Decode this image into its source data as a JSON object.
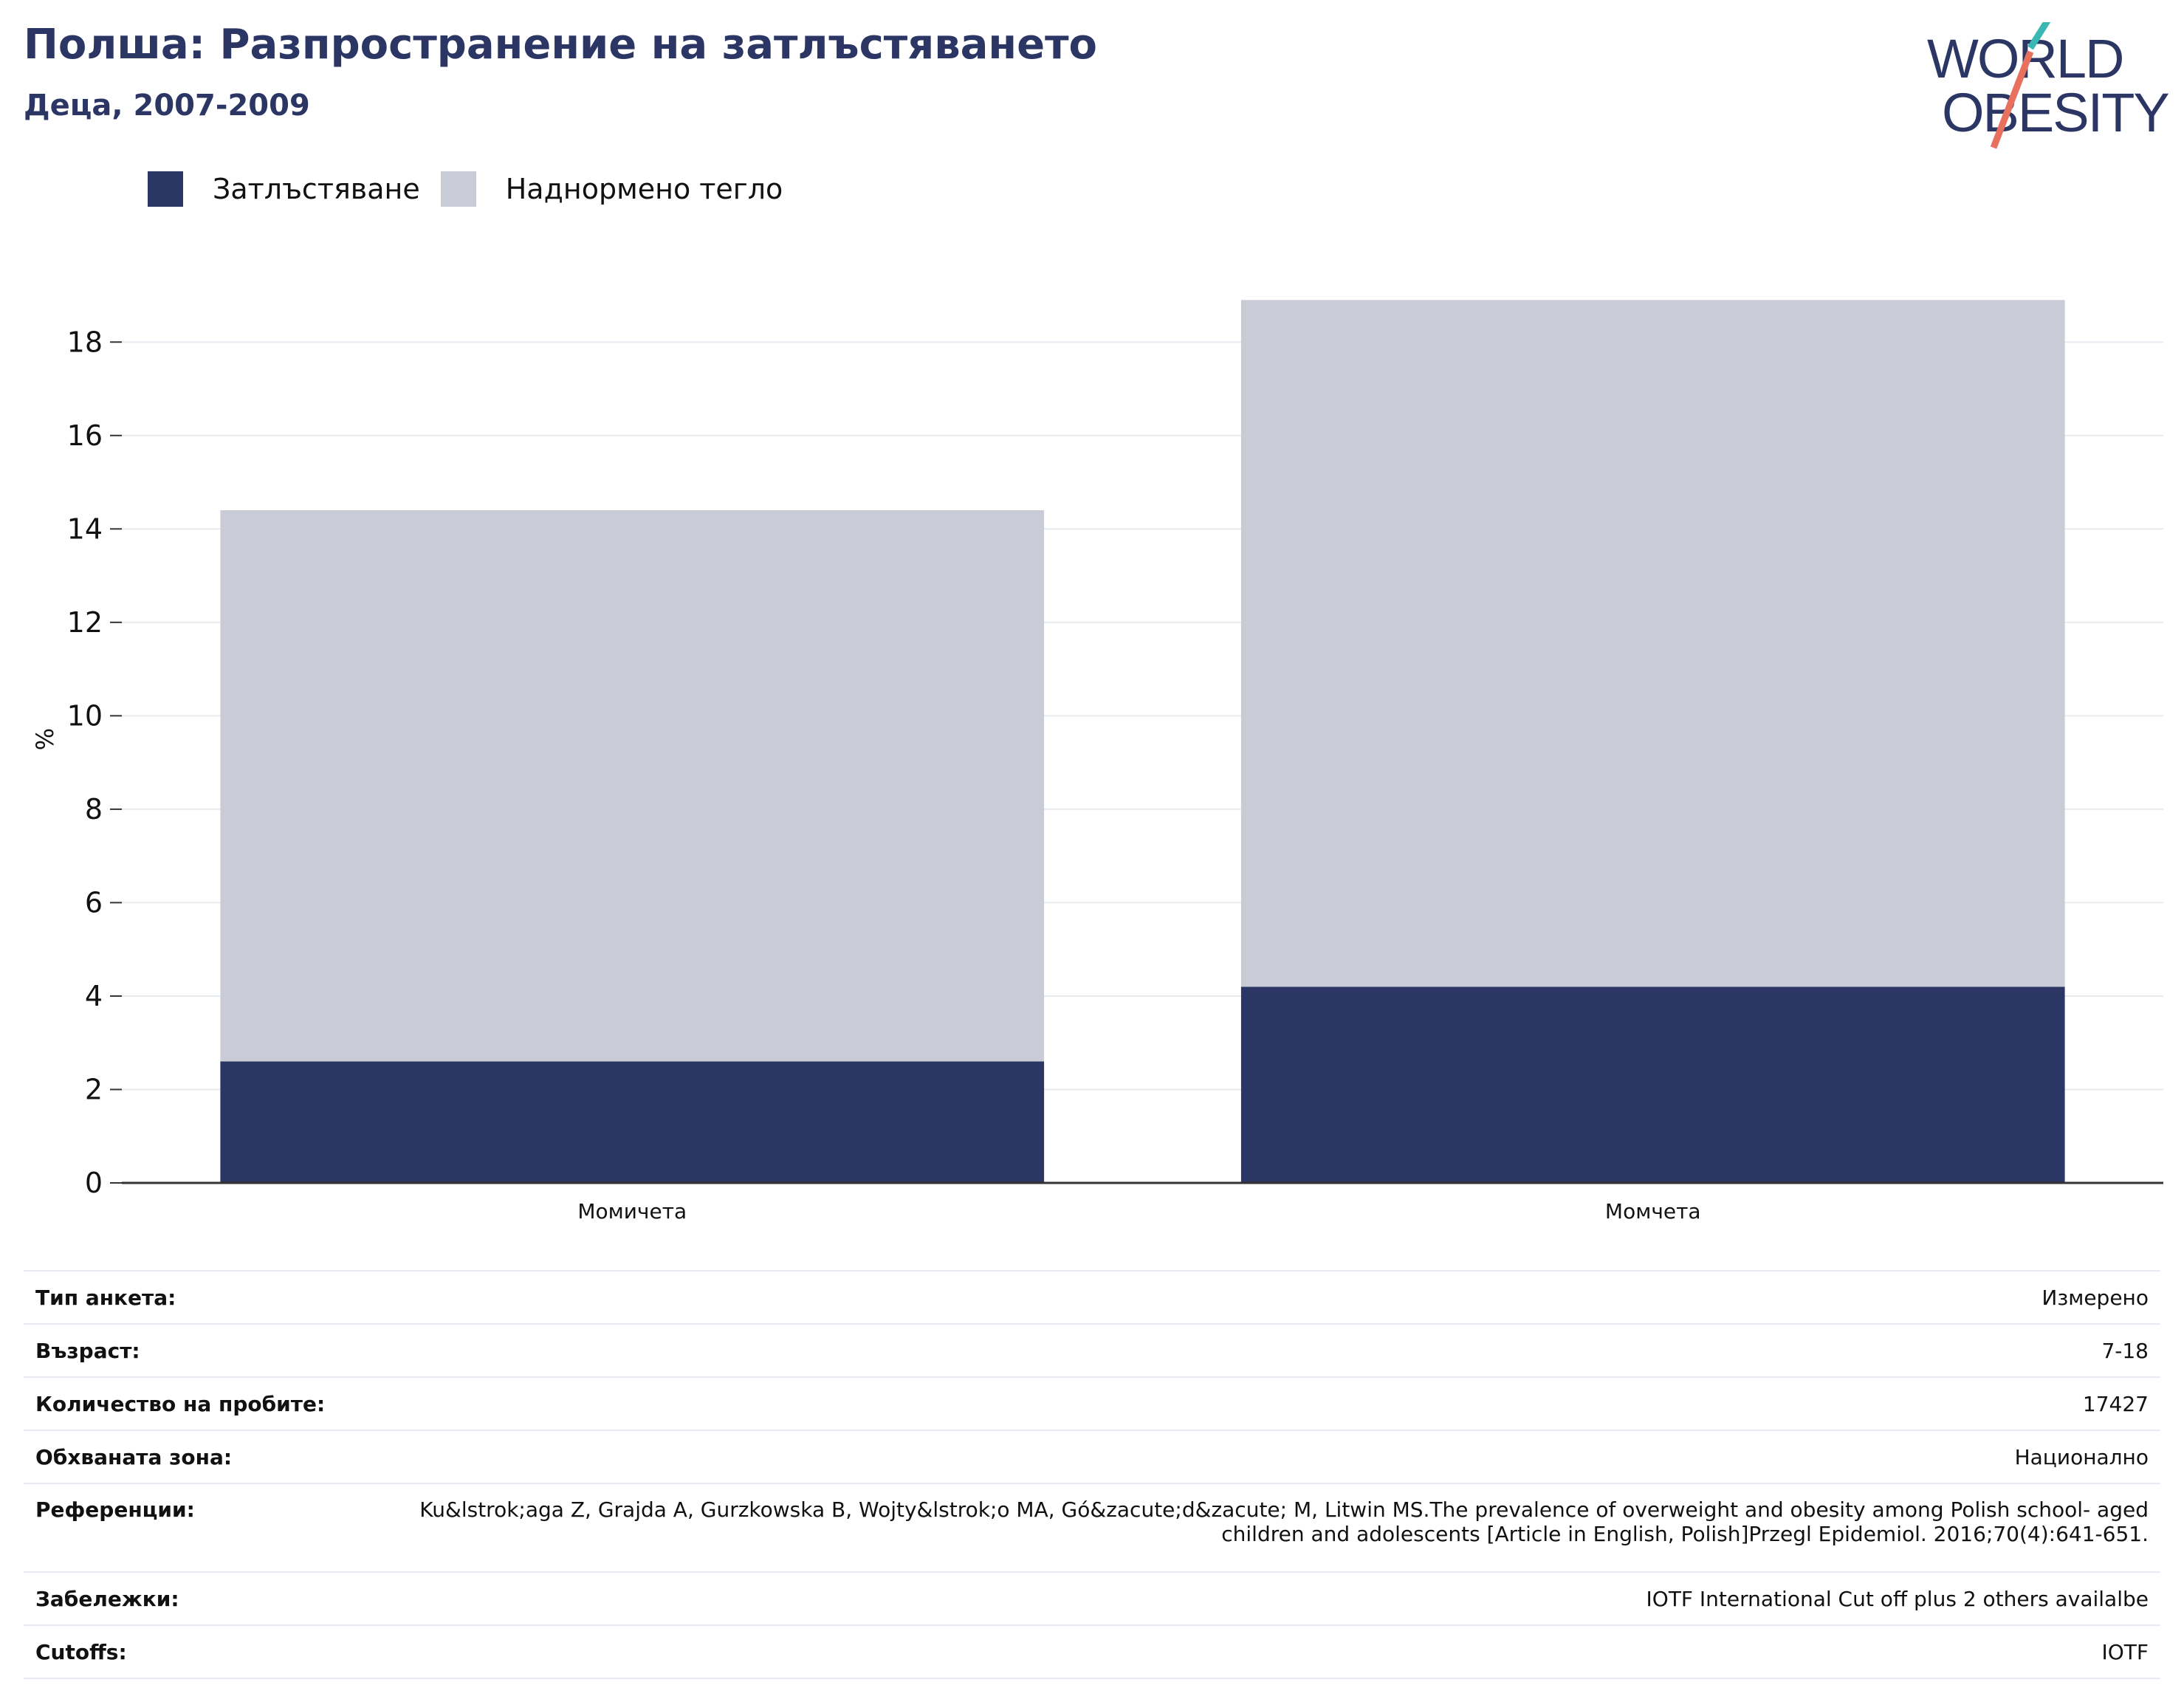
{
  "header": {
    "title": "Полша: Разпространение на затлъстяването",
    "subtitle": "Деца, 2007-2009"
  },
  "logo": {
    "line1": "WORLD",
    "line2": "OBESITY",
    "colors": {
      "text": "#2b3664",
      "slash_teal": "#3bb7b4",
      "slash_red": "#e8705f"
    }
  },
  "colors": {
    "obesity": "#2b3664",
    "overweight": "#c9cbd7",
    "grid": "#e9eaef",
    "axis": "#333333"
  },
  "chart_data": {
    "type": "bar",
    "stacked": true,
    "categories": [
      "Момичета",
      "Момчета"
    ],
    "series": [
      {
        "name": "Затлъстяване",
        "values": [
          2.6,
          4.2
        ]
      },
      {
        "name": "Наднормено тегло",
        "values": [
          11.8,
          14.7
        ]
      }
    ],
    "ylabel": "%",
    "ylim": [
      0,
      19
    ],
    "yticks": [
      0,
      2,
      4,
      6,
      8,
      10,
      12,
      14,
      16,
      18
    ],
    "grid": true,
    "legend": "top-left"
  },
  "info": [
    {
      "key": "Тип анкета:",
      "value": "Измерено"
    },
    {
      "key": "Възраст:",
      "value": "7-18"
    },
    {
      "key": "Количество на пробите:",
      "value": "17427"
    },
    {
      "key": "Обхваната зона:",
      "value": "Национално"
    },
    {
      "key": "Референции:",
      "value": "Ku&lstrok;aga Z, Grajda A, Gurzkowska B, Wojty&lstrok;o MA, Gó&zacute;d&zacute; M, Litwin MS.The prevalence of overweight and obesity among Polish school- aged children and adolescents [Article in English, Polish]Przegl Epidemiol. 2016;70(4):641-651."
    },
    {
      "key": "Забележки:",
      "value": "IOTF International Cut off plus 2 others availalbe"
    },
    {
      "key": "Cutoffs:",
      "value": "IOTF"
    }
  ]
}
